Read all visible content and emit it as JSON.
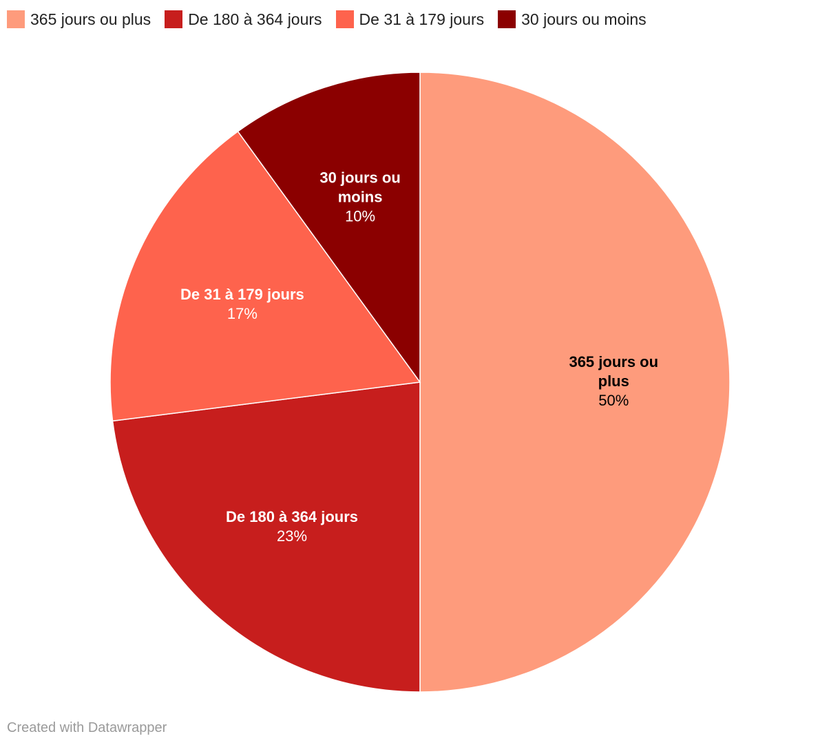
{
  "chart_data": {
    "type": "pie",
    "categories": [
      "365 jours ou plus",
      "De 180 à 364 jours",
      "De 31 à 179 jours",
      "30 jours ou moins"
    ],
    "values": [
      50,
      23,
      17,
      10
    ],
    "value_labels": [
      "50%",
      "23%",
      "17%",
      "10%"
    ],
    "slice_label_lines": [
      [
        "365 jours ou",
        "plus"
      ],
      [
        "De 180 à 364 jours"
      ],
      [
        "De 31 à 179 jours"
      ],
      [
        "30 jours ou",
        "moins"
      ]
    ],
    "colors": [
      "#fe9b7c",
      "#c71e1d",
      "#fe634d",
      "#8b0000"
    ],
    "label_colors": [
      "#000000",
      "#ffffff",
      "#ffffff",
      "#ffffff"
    ],
    "start_angle": "12 o'clock",
    "direction": "clockwise",
    "legend_position": "top-left"
  },
  "legend": [
    {
      "label": "365 jours ou plus",
      "color": "#fe9b7c"
    },
    {
      "label": "De 180 à 364 jours",
      "color": "#c71e1d"
    },
    {
      "label": "De 31 à 179 jours",
      "color": "#fe634d"
    },
    {
      "label": "30 jours ou moins",
      "color": "#8b0000"
    }
  ],
  "footer": "Created with Datawrapper"
}
